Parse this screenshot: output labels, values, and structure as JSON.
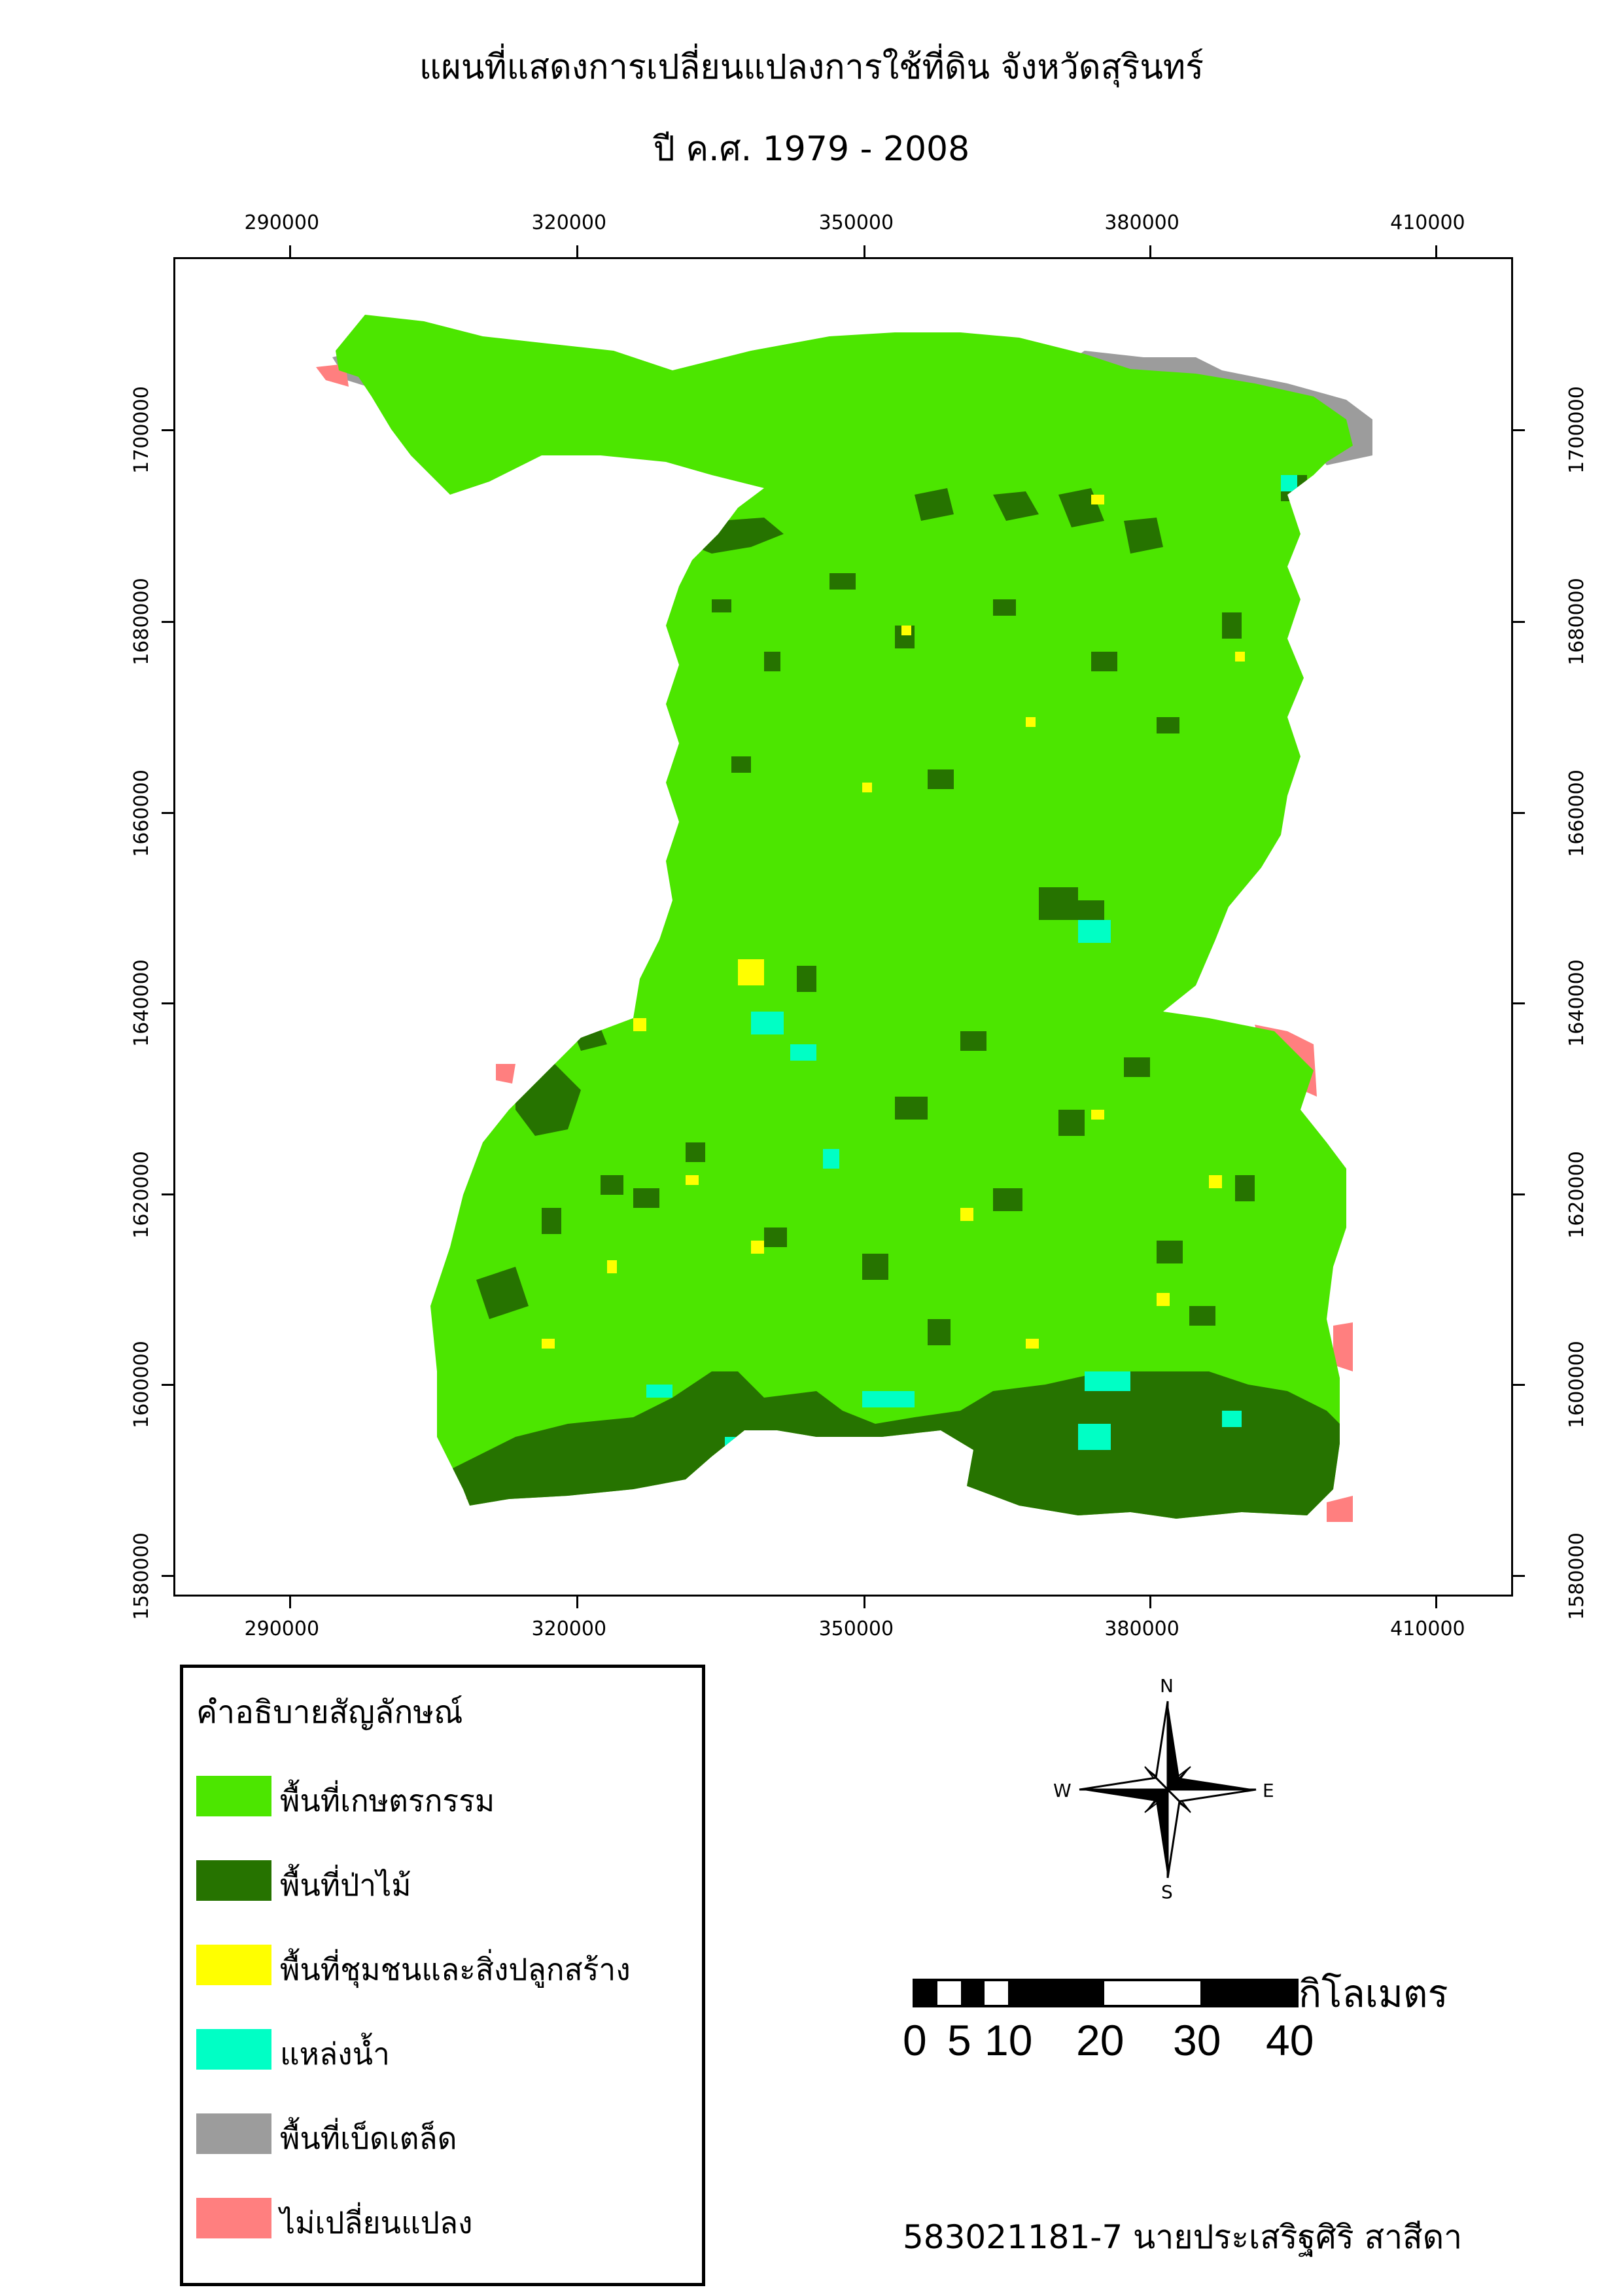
{
  "title": {
    "line1": "แผนที่แสดงการเปลี่ยนแปลงการใช้ที่ดิน จังหวัดสุรินทร์",
    "line2": "ปี ค.ศ. 1979 - 2008"
  },
  "grid": {
    "eastings": [
      "290000",
      "320000",
      "350000",
      "380000",
      "410000"
    ],
    "northings": [
      "1580000",
      "1600000",
      "1620000",
      "1640000",
      "1660000",
      "1680000",
      "1700000"
    ]
  },
  "legend": {
    "title": "คำอธิบายสัญลักษณ์",
    "items": [
      {
        "label": "พื้นที่เกษตรกรรม",
        "color": "#4ce600"
      },
      {
        "label": "พื้นที่ป่าไม้",
        "color": "#267300"
      },
      {
        "label": "พื้นที่ชุมชนและสิ่งปลูกสร้าง",
        "color": "#ffff00"
      },
      {
        "label": "แหล่งน้ำ",
        "color": "#00ffc5"
      },
      {
        "label": "พื้นที่เบ็ดเตล็ด",
        "color": "#9c9c9c"
      },
      {
        "label": "ไม่เปลี่ยนแปลง",
        "color": "#ff7f7f"
      }
    ]
  },
  "compass": {
    "n": "N",
    "s": "S",
    "e": "E",
    "w": "W"
  },
  "scale_bar": {
    "unit": "กิโลเมตร",
    "labels": [
      "0",
      "5",
      "10",
      "20",
      "30",
      "40"
    ]
  },
  "author": "583021181-7 นายประเสริฐศิริ สาสีดา"
}
